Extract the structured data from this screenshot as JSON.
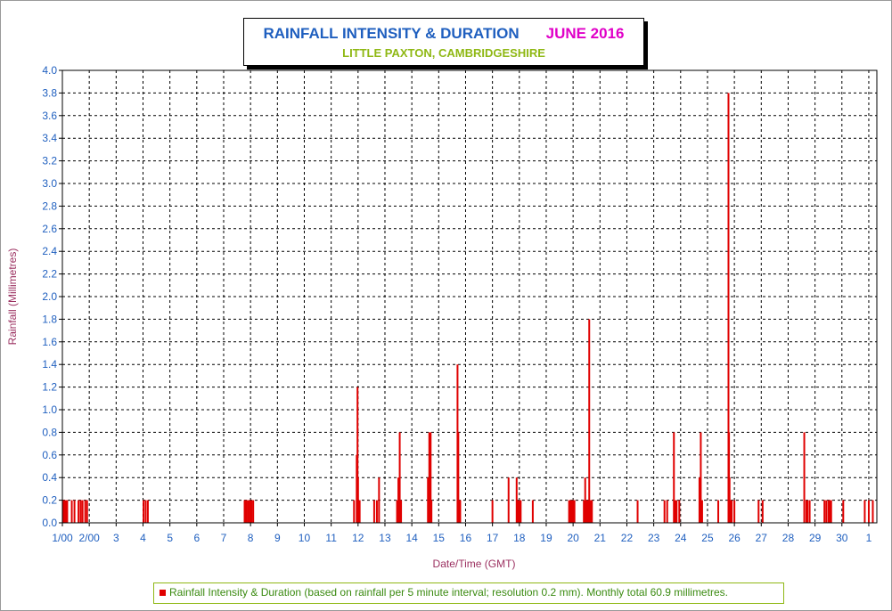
{
  "title": {
    "main": "RAINFALL INTENSITY & DURATION",
    "month": "JUNE 2016",
    "location": "LITTLE PAXTON, CAMBRIDGESHIRE"
  },
  "legend": {
    "text": "Rainfall Intensity & Duration (based on rainfall per 5 minute interval; resolution 0.2 mm). Monthly total 60.9 millimetres.",
    "color": "#e00000"
  },
  "colors": {
    "bar": "#e00000",
    "tick_text": "#1f5fbf",
    "axis_label": "#9b3060",
    "title_blue": "#1f5fbf",
    "title_magenta": "#e000c8",
    "subtitle_green": "#8fb814"
  },
  "chart_data": {
    "type": "bar",
    "title": "RAINFALL INTENSITY & DURATION",
    "subtitle": "LITTLE PAXTON, CAMBRIDGESHIRE",
    "xlabel": "Date/Time (GMT)",
    "ylabel": "Rainfall (Millimetres)",
    "ylim": [
      0,
      4.0
    ],
    "xlim_days": [
      1,
      31.3
    ],
    "grid": true,
    "legend_position": "bottom",
    "ytick_labels": [
      "0.0",
      "0.2",
      "0.4",
      "0.6",
      "0.8",
      "1.0",
      "1.2",
      "1.4",
      "1.6",
      "1.8",
      "2.0",
      "2.2",
      "2.4",
      "2.6",
      "2.8",
      "3.0",
      "3.2",
      "3.4",
      "3.6",
      "3.8",
      "4.0"
    ],
    "xtick_labels": [
      "1/00",
      "2/00",
      "3",
      "4",
      "5",
      "6",
      "7",
      "8",
      "9",
      "10",
      "11",
      "12",
      "13",
      "14",
      "15",
      "16",
      "17",
      "18",
      "19",
      "20",
      "21",
      "22",
      "23",
      "24",
      "25",
      "26",
      "27",
      "28",
      "29",
      "30",
      "1"
    ],
    "series": [
      {
        "name": "Rainfall Intensity & Duration",
        "x_day": [
          1.02,
          1.08,
          1.13,
          1.18,
          1.35,
          1.45,
          1.6,
          1.68,
          1.75,
          1.85,
          1.92,
          4.02,
          4.1,
          4.18,
          7.78,
          7.82,
          7.86,
          7.92,
          7.98,
          8.04,
          8.1,
          11.85,
          11.95,
          11.98,
          12.0,
          12.03,
          12.06,
          12.6,
          12.7,
          12.78,
          13.45,
          13.5,
          13.55,
          13.6,
          14.6,
          14.65,
          14.7,
          14.73,
          15.7,
          15.73,
          15.76,
          15.8,
          17.0,
          17.6,
          17.9,
          17.95,
          18.0,
          18.05,
          18.5,
          19.85,
          19.9,
          19.95,
          20.0,
          20.05,
          20.4,
          20.45,
          20.5,
          20.55,
          20.6,
          20.65,
          20.7,
          22.4,
          23.4,
          23.5,
          23.75,
          23.8,
          23.85,
          23.95,
          24.7,
          24.75,
          24.8,
          25.4,
          25.78,
          25.8,
          25.82,
          25.86,
          25.9,
          26.0,
          26.9,
          27.05,
          28.6,
          28.68,
          28.72,
          28.8,
          29.35,
          29.42,
          29.5,
          29.55,
          29.6,
          30.05,
          30.85,
          31.0,
          31.15
        ],
        "y": [
          0.2,
          0.2,
          0.2,
          0.2,
          0.2,
          0.2,
          0.2,
          0.2,
          0.2,
          0.2,
          0.2,
          0.2,
          0.2,
          0.2,
          0.2,
          0.2,
          0.2,
          0.2,
          0.2,
          0.2,
          0.2,
          0.2,
          0.6,
          1.2,
          0.4,
          0.2,
          0.2,
          0.2,
          0.2,
          0.4,
          0.2,
          0.4,
          0.8,
          0.2,
          0.4,
          0.8,
          0.8,
          0.2,
          1.4,
          0.8,
          0.2,
          0.2,
          0.2,
          0.4,
          0.4,
          0.2,
          0.2,
          0.2,
          0.2,
          0.2,
          0.2,
          0.2,
          0.2,
          0.2,
          0.2,
          0.4,
          0.2,
          0.2,
          1.8,
          0.2,
          0.2,
          0.2,
          0.2,
          0.2,
          0.8,
          0.2,
          0.2,
          0.2,
          0.4,
          0.8,
          0.2,
          0.2,
          3.8,
          0.8,
          0.4,
          0.2,
          0.2,
          0.2,
          0.2,
          0.2,
          0.8,
          0.2,
          0.2,
          0.2,
          0.2,
          0.2,
          0.2,
          0.2,
          0.2,
          0.2,
          0.2,
          0.2,
          0.2
        ]
      }
    ]
  }
}
